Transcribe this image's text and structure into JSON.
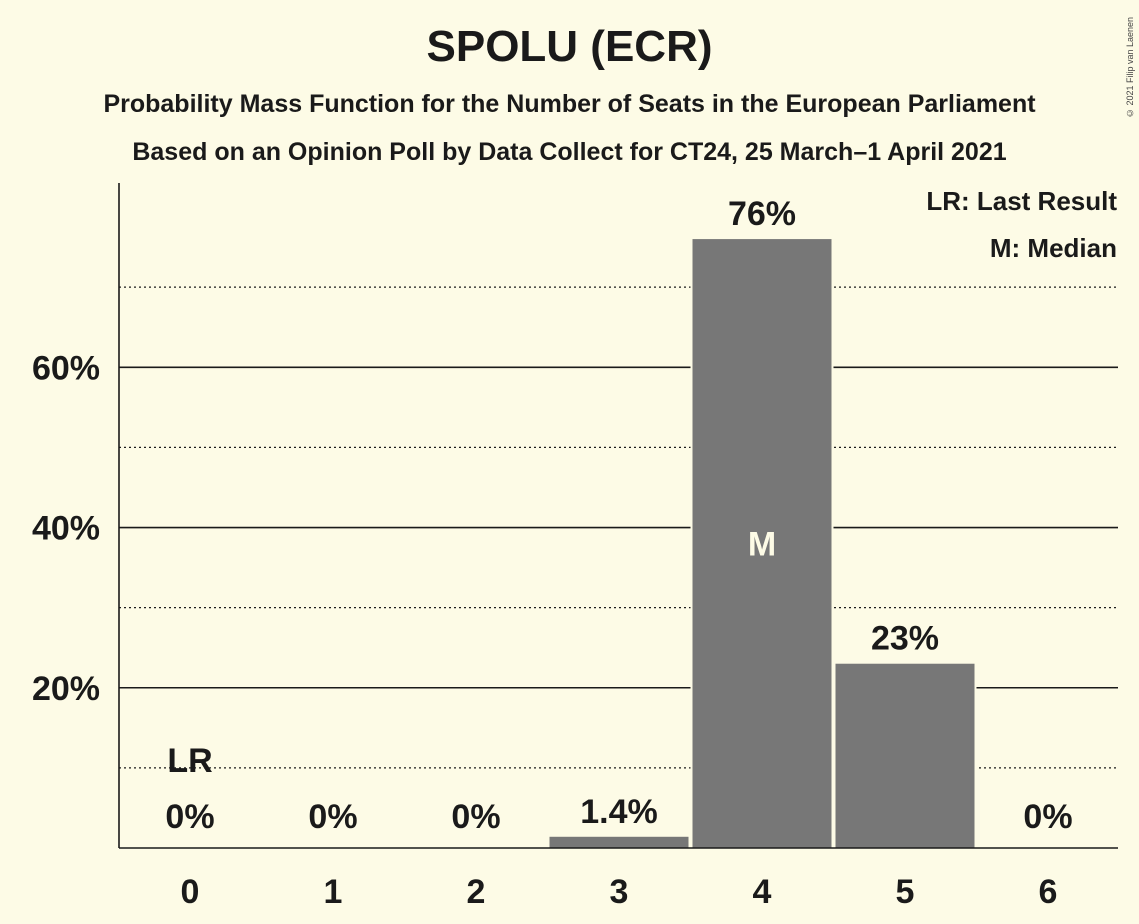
{
  "title": "SPOLU (ECR)",
  "subtitle_1": "Probability Mass Function for the Number of Seats in the European Parliament",
  "subtitle_2": "Based on an Opinion Poll by Data Collect for CT24, 25 March–1 April 2021",
  "copyright": "© 2021 Filip van Laenen",
  "legend": [
    "LR: Last Result",
    "M: Median"
  ],
  "colors": {
    "bar": "#777777",
    "background": "#fdfbe6",
    "text": "#1a1a1a"
  },
  "chart_data": {
    "type": "bar",
    "categories": [
      "0",
      "1",
      "2",
      "3",
      "4",
      "5",
      "6"
    ],
    "values": [
      0,
      0,
      0,
      1.4,
      76,
      23,
      0
    ],
    "value_labels": [
      "0%",
      "0%",
      "0%",
      "1.4%",
      "76%",
      "23%",
      "0%"
    ],
    "ylim": [
      0,
      83
    ],
    "yticks": [
      20,
      40,
      60
    ],
    "ytick_labels": [
      "20%",
      "40%",
      "60%"
    ],
    "minor_gridlines": [
      10,
      30,
      50,
      70
    ],
    "last_result_category": "0",
    "last_result_marker": "LR",
    "median_category": "4",
    "median_marker": "M",
    "grid": true,
    "legend_position": "top-right"
  }
}
